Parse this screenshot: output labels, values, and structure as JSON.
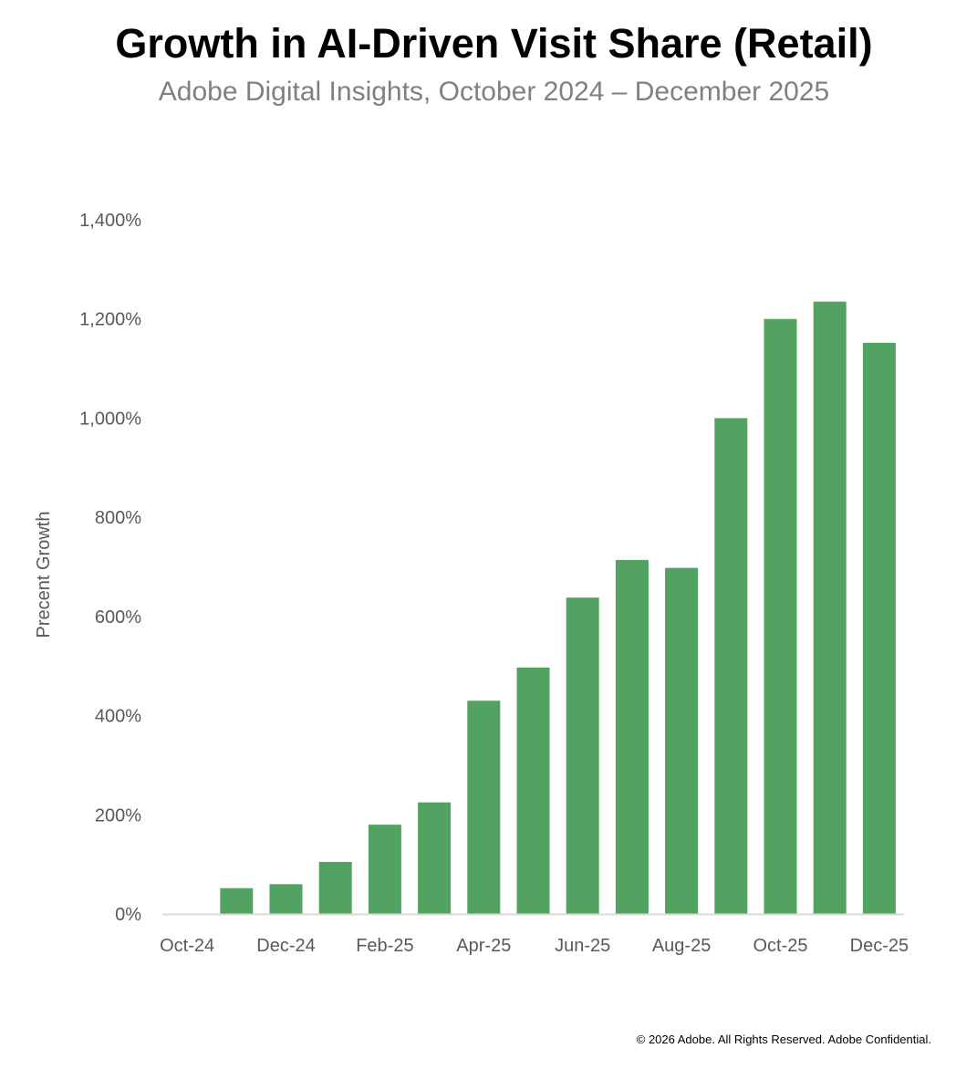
{
  "chart_data": {
    "type": "bar",
    "title": "Growth in AI-Driven Visit Share (Retail)",
    "subtitle": "Adobe Digital Insights, October 2024 – December 2025",
    "xlabel": "",
    "ylabel": "Precent Growth",
    "ylim": [
      0,
      1400
    ],
    "yticks": [
      0,
      200,
      400,
      600,
      800,
      1000,
      1200,
      1400
    ],
    "ytick_labels": [
      "0%",
      "200%",
      "400%",
      "600%",
      "800%",
      "1,000%",
      "1,200%",
      "1,400%"
    ],
    "categories": [
      "Oct-24",
      "Nov-24",
      "Dec-24",
      "Jan-25",
      "Feb-25",
      "Mar-25",
      "Apr-25",
      "May-25",
      "Jun-25",
      "Jul-25",
      "Aug-25",
      "Sep-25",
      "Oct-25",
      "Nov-25",
      "Dec-25"
    ],
    "xtick_labels_shown": [
      "Oct-24",
      "Dec-24",
      "Feb-25",
      "Apr-25",
      "Jun-25",
      "Aug-25",
      "Oct-25",
      "Dec-25"
    ],
    "values": [
      0,
      52,
      60,
      105,
      180,
      225,
      430,
      497,
      638,
      714,
      698,
      1000,
      1200,
      1235,
      1152
    ],
    "bar_color": "#52a262",
    "grid": false,
    "legend": "none"
  },
  "footer": "© 2026 Adobe. All Rights Reserved. Adobe Confidential."
}
